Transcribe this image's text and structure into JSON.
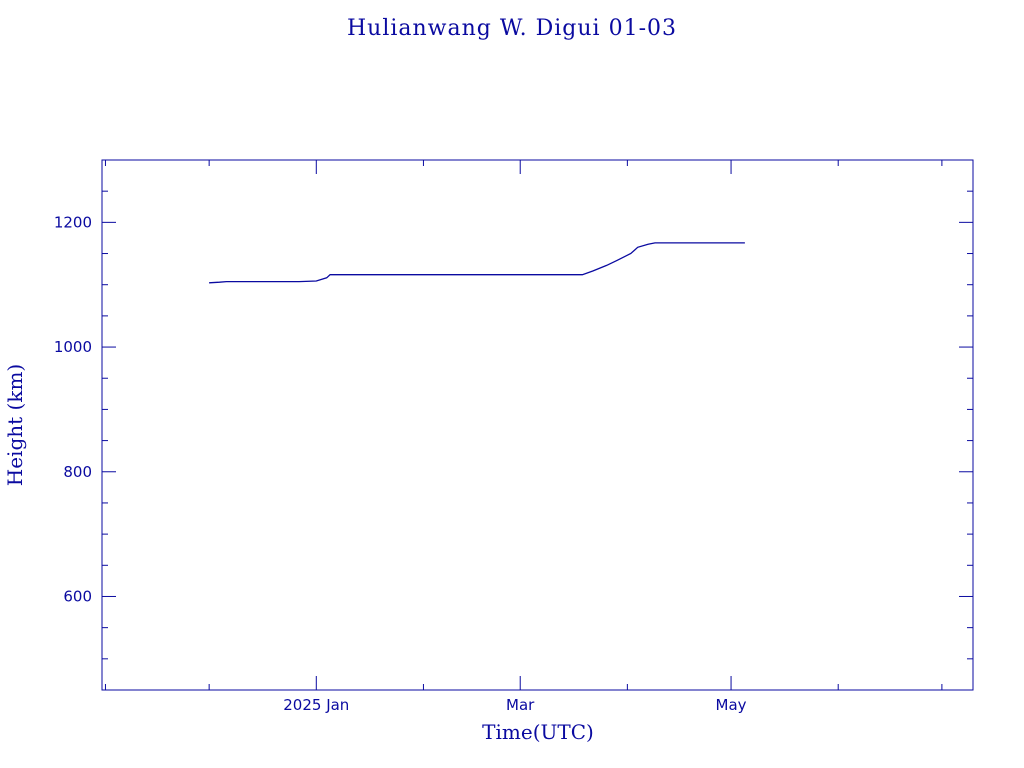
{
  "chart_data": {
    "type": "line",
    "title": "Hulianwang W. Digui 01-03",
    "xlabel": "Time(UTC)",
    "ylabel": "Height (km)",
    "ylim": [
      450,
      1300
    ],
    "xlim": [
      "2024-10-31",
      "2025-07-10"
    ],
    "x_tick_labels": [
      {
        "date": "2025-01-01",
        "label": "2025 Jan"
      },
      {
        "date": "2025-03-01",
        "label": "Mar"
      },
      {
        "date": "2025-05-01",
        "label": "May"
      }
    ],
    "y_ticks": [
      600,
      800,
      1000,
      1200
    ],
    "color": "#0a0aa0",
    "series": [
      {
        "x": [
          "2024-12-01",
          "2024-12-04",
          "2024-12-06",
          "2024-12-10",
          "2024-12-20",
          "2024-12-27",
          "2025-01-01",
          "2025-01-04",
          "2025-01-05",
          "2025-02-01",
          "2025-03-01",
          "2025-03-19",
          "2025-03-22",
          "2025-03-26",
          "2025-03-29",
          "2025-04-02",
          "2025-04-04",
          "2025-04-07",
          "2025-04-09",
          "2025-05-01",
          "2025-05-05"
        ],
        "y": [
          1103,
          1104,
          1105,
          1105,
          1105,
          1105,
          1106,
          1111,
          1116,
          1116,
          1116,
          1116,
          1122,
          1131,
          1139,
          1150,
          1160,
          1165,
          1167,
          1167,
          1167
        ]
      }
    ]
  }
}
